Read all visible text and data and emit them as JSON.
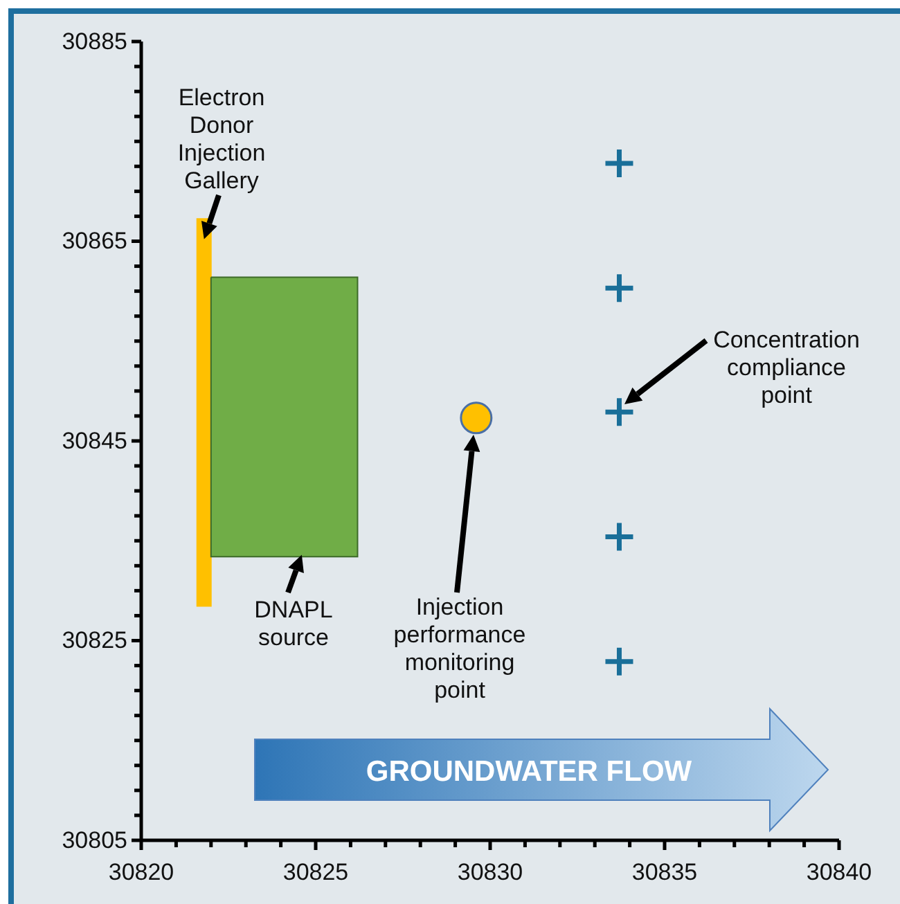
{
  "chart_data": {
    "type": "scatter",
    "grid": false,
    "xlim": [
      30820,
      30840
    ],
    "xticks": [
      30820,
      {
        "value": 30821,
        "label": null
      },
      {
        "value": 30822,
        "label": null
      },
      {
        "value": 30823,
        "label": null
      },
      {
        "value": 30824,
        "label": null
      },
      30825,
      {
        "value": 30826,
        "label": null
      },
      {
        "value": 30827,
        "label": null
      },
      {
        "value": 30828,
        "label": null
      },
      {
        "value": 30829,
        "label": null
      },
      30830,
      {
        "value": 30831,
        "label": null
      },
      {
        "value": 30832,
        "label": null
      },
      {
        "value": 30833,
        "label": null
      },
      {
        "value": 30834,
        "label": null
      },
      30835,
      {
        "value": 30836,
        "label": null
      },
      {
        "value": 30837,
        "label": null
      },
      {
        "value": 30838,
        "label": null
      },
      {
        "value": 30839,
        "label": null
      },
      30840
    ],
    "ylim": [
      30805,
      30885
    ],
    "yticks": [
      30805,
      {
        "value": 30807.5,
        "label": null
      },
      {
        "value": 30810,
        "label": null
      },
      {
        "value": 30812.5,
        "label": null
      },
      {
        "value": 30815,
        "label": null
      },
      {
        "value": 30817.5,
        "label": null
      },
      {
        "value": 30820,
        "label": null
      },
      {
        "value": 30822.5,
        "label": null
      },
      30825,
      {
        "value": 30827.5,
        "label": null
      },
      {
        "value": 30830,
        "label": null
      },
      {
        "value": 30832.5,
        "label": null
      },
      {
        "value": 30835,
        "label": null
      },
      {
        "value": 30837.5,
        "label": null
      },
      {
        "value": 30840,
        "label": null
      },
      {
        "value": 30842.5,
        "label": null
      },
      30845,
      {
        "value": 30847.5,
        "label": null
      },
      {
        "value": 30850,
        "label": null
      },
      {
        "value": 30852.5,
        "label": null
      },
      {
        "value": 30855,
        "label": null
      },
      {
        "value": 30857.5,
        "label": null
      },
      {
        "value": 30860,
        "label": null
      },
      {
        "value": 30862.5,
        "label": null
      },
      30865,
      {
        "value": 30867.5,
        "label": null
      },
      {
        "value": 30870,
        "label": null
      },
      {
        "value": 30872.5,
        "label": null
      },
      {
        "value": 30875,
        "label": null
      },
      {
        "value": 30877.5,
        "label": null
      },
      {
        "value": 30880,
        "label": null
      },
      {
        "value": 30882.5,
        "label": null
      },
      30885
    ],
    "series": [
      {
        "type": "line",
        "color": "#ffc000",
        "line_style": "solid",
        "x": [
          30821.8,
          30821.8
        ],
        "values": [
          30828.4,
          30867.3
        ]
      },
      {
        "type": "area",
        "color": "#70ad47",
        "x": [
          30822,
          30826.2,
          30826.2,
          30822,
          30822
        ],
        "values": [
          30861.4,
          30861.4,
          30833.4,
          30833.4,
          30861.4
        ]
      },
      {
        "color": "#ffc000",
        "marker": "circle",
        "x": [
          30829.6
        ],
        "values": [
          30847.3
        ]
      },
      {
        "color": "#1a6f99",
        "marker": "cross",
        "x": [
          30833.7,
          30833.7,
          30833.7,
          30833.7,
          30833.7
        ],
        "values": [
          30872.8,
          30860.3,
          30847.9,
          30835.4,
          30822.9
        ]
      }
    ],
    "annotations": [
      {
        "text": "Electron Donor Injection Gallery",
        "x": 30821.8,
        "y": 30865.2
      },
      {
        "text": "DNAPL source",
        "x": 30824.6,
        "y": 30833.6
      },
      "Injection performance monitoring point",
      "Concentration compliance point",
      "GROUNDWATER FLOW"
    ]
  }
}
